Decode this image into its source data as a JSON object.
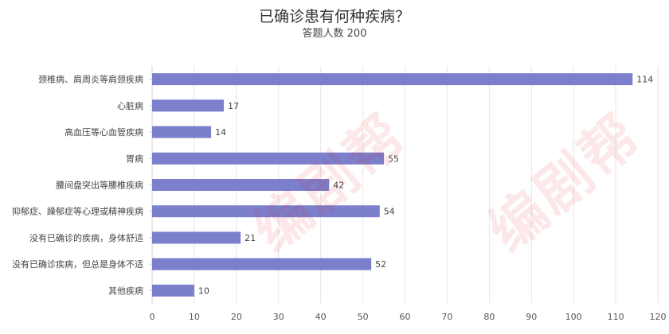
{
  "chart_data": {
    "type": "bar",
    "orientation": "horizontal",
    "title": "已确诊患有何种疾病？",
    "subtitle": "答题人数 200",
    "categories": [
      "颈椎病、肩周炎等肩颈疾病",
      "心脏病",
      "高血压等心血管疾病",
      "胃病",
      "腰间盘突出等腰椎疾病",
      "抑郁症、躁郁症等心理或精神疾病",
      "没有已确诊的疾病，身体舒适",
      "没有已确诊疾病，但总是身体不适",
      "其他疾病"
    ],
    "values": [
      114,
      17,
      14,
      55,
      42,
      54,
      21,
      52,
      10
    ],
    "xlim": [
      0,
      120
    ],
    "xticks": [
      0,
      10,
      20,
      30,
      40,
      50,
      60,
      70,
      80,
      90,
      100,
      110,
      120
    ],
    "grid": true,
    "bar_color": "#7b7fcc",
    "data_labels": true
  },
  "watermark": {
    "text": "编剧帮",
    "color": "#e3262b"
  }
}
